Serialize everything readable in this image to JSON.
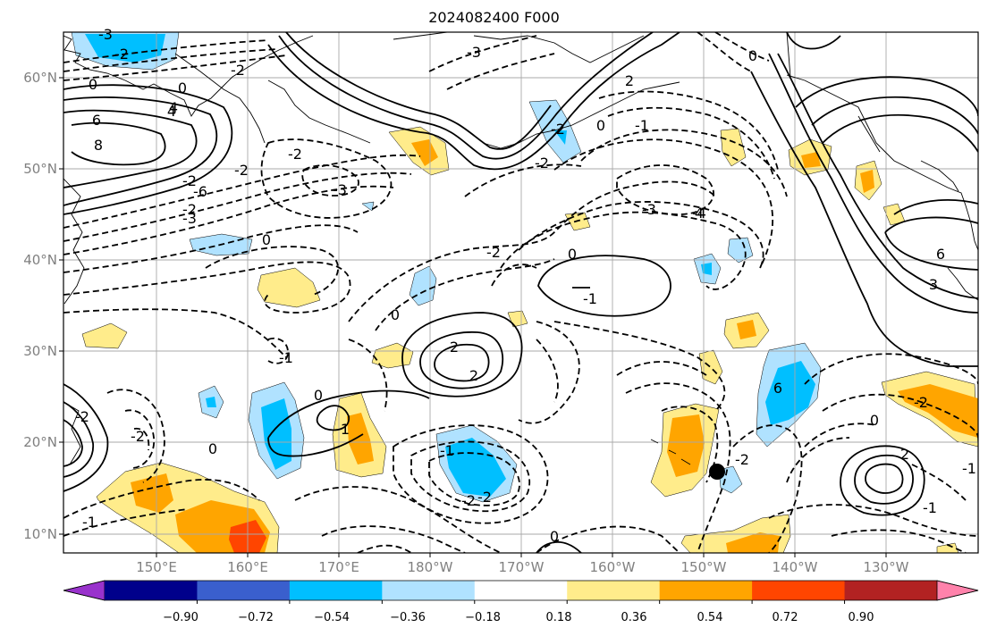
{
  "title": "2024082400 F000",
  "latitude_labels": [
    "60°N",
    "50°N",
    "40°N",
    "30°N",
    "20°N",
    "10°N"
  ],
  "longitude_labels": [
    "150°E",
    "160°E",
    "170°E",
    "180°W",
    "170°W",
    "160°W",
    "150°W",
    "140°W",
    "130°W"
  ],
  "colorbar": {
    "tick_labels": [
      "−0.90",
      "−0.72",
      "−0.54",
      "−0.36",
      "−0.18",
      "0.18",
      "0.36",
      "0.54",
      "0.72",
      "0.90"
    ],
    "colors": [
      "#9932cc",
      "#00008b",
      "#3a5fcd",
      "#00bfff",
      "#b0e2ff",
      "#ffffff",
      "#ffec8b",
      "#ffa500",
      "#ff4500",
      "#b22222",
      "#ff82ab"
    ]
  },
  "contour_labels": [
    "-3",
    "-2",
    "-2",
    "-3",
    "0",
    "0",
    "-2",
    "-3",
    "-4",
    "-2",
    "0",
    "0",
    "-1",
    "2",
    "2",
    "0",
    "1",
    "-1",
    "-2",
    "-2",
    "-1",
    "-2",
    "0",
    "-2",
    "-1",
    "0",
    "2",
    "-2",
    "-2",
    "0",
    "-1",
    "-1",
    "-2",
    "-2",
    "0",
    "2",
    "-1",
    "-3",
    "6",
    "4",
    "6",
    "3",
    "0",
    "-2",
    "0",
    "-3",
    "-2",
    "-6",
    "-2",
    "4",
    "6",
    "8",
    "4"
  ],
  "marker": {
    "name": "black-dot",
    "color": "#000000"
  }
}
